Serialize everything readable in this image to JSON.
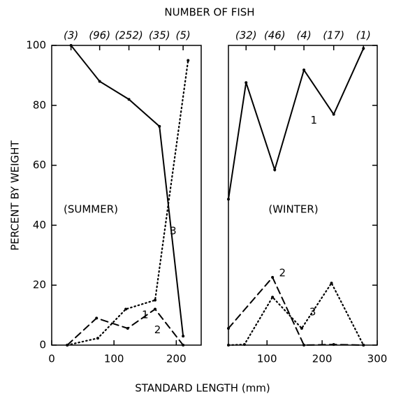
{
  "title": "NUMBER OF FISH",
  "x_label": "STANDARD LENGTH (mm)",
  "y_label": "PERCENT BY WEIGHT",
  "chart_data": [
    {
      "type": "line",
      "panel_label": "(SUMMER)",
      "xlim": [
        0,
        240
      ],
      "xticks": [
        0,
        100,
        200
      ],
      "ylim": [
        0,
        100
      ],
      "yticks": [
        0,
        20,
        40,
        60,
        80,
        100
      ],
      "top_ticks": [
        {
          "value": 31,
          "label": "(3)"
        },
        {
          "value": 77,
          "label": "(96)"
        },
        {
          "value": 124,
          "label": "(252)"
        },
        {
          "value": 173,
          "label": "(35)"
        },
        {
          "value": 211,
          "label": "(5)"
        }
      ],
      "series": [
        {
          "name": "1",
          "color": "#000000",
          "dash": "solid",
          "x": [
            31,
            77,
            124,
            173,
            211
          ],
          "values": [
            100,
            88,
            82,
            73,
            3
          ]
        },
        {
          "name": "2",
          "color": "#000000",
          "dash": "dashed",
          "x": [
            25,
            72,
            122,
            166,
            211
          ],
          "values": [
            0,
            9,
            5.6,
            12,
            0
          ]
        },
        {
          "name": "3",
          "color": "#000000",
          "dash": "dotted",
          "x": [
            25,
            74,
            119,
            166,
            219
          ],
          "values": [
            0,
            2.3,
            12,
            15,
            95
          ]
        }
      ]
    },
    {
      "type": "line",
      "panel_label": "(WINTER)",
      "xlim": [
        30,
        300
      ],
      "xticks": [
        100,
        200,
        300
      ],
      "ylim": [
        0,
        100
      ],
      "yticks": [
        0,
        20,
        40,
        60,
        80,
        100
      ],
      "top_ticks": [
        {
          "value": 62,
          "label": "(32)"
        },
        {
          "value": 114,
          "label": "(46)"
        },
        {
          "value": 167,
          "label": "(4)"
        },
        {
          "value": 221,
          "label": "(17)"
        },
        {
          "value": 275,
          "label": "(1)"
        }
      ],
      "series": [
        {
          "name": "1",
          "color": "#000000",
          "dash": "solid",
          "x": [
            30,
            62,
            114,
            167,
            221,
            275
          ],
          "values": [
            48.7,
            87.6,
            58.5,
            91.8,
            77,
            99
          ]
        },
        {
          "name": "2",
          "color": "#000000",
          "dash": "dashed",
          "x": [
            30,
            110,
            167,
            221,
            275
          ],
          "values": [
            5.6,
            22.6,
            0,
            0.2,
            0
          ]
        },
        {
          "name": "3",
          "color": "#000000",
          "dash": "dotted",
          "x": [
            30,
            59,
            110,
            163,
            217,
            275
          ],
          "values": [
            0,
            0.2,
            16,
            5.6,
            20.7,
            0
          ]
        }
      ]
    }
  ]
}
